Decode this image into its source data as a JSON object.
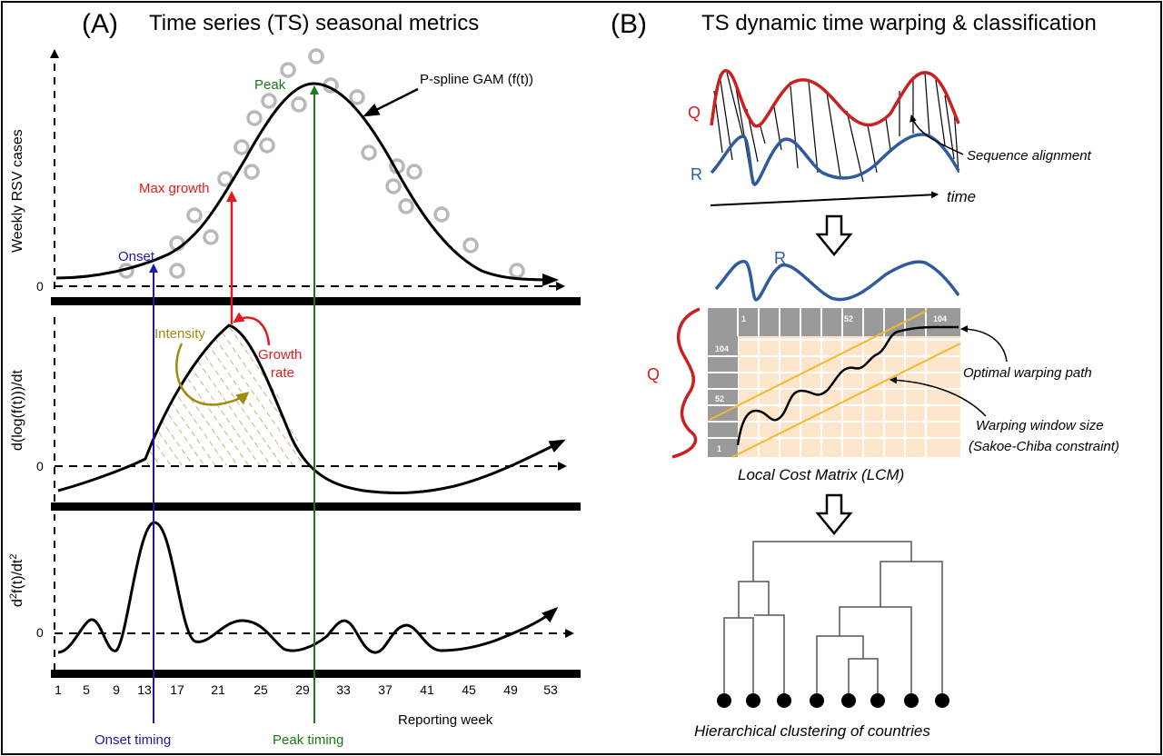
{
  "panel_a": {
    "letter": "(A)",
    "title": "Time series (TS) seasonal metrics",
    "ylabel_top": "Weekly RSV cases",
    "ylabel_mid": "d(log(f(t)))/dt",
    "ylabel_bot_base": "d",
    "ylabel_bot_sup1": "2",
    "ylabel_bot_mid": "f(t)/dt",
    "ylabel_bot_sup2": "2",
    "zero": "0",
    "xlabel": "Reporting week",
    "xticks": [
      "1",
      "5",
      "9",
      "13",
      "17",
      "21",
      "25",
      "29",
      "33",
      "37",
      "41",
      "45",
      "49",
      "53"
    ],
    "labels": {
      "gam": "P-spline GAM (f(t))",
      "peak": "Peak",
      "max_growth": "Max growth",
      "onset": "Onset",
      "intensity": "Intensity",
      "growth": "Growth",
      "rate": "rate",
      "onset_timing": "Onset timing",
      "peak_timing": "Peak timing"
    },
    "colors": {
      "curve": "#000000",
      "points": "#b8b8b8",
      "onset": "#1a1aa6",
      "growth": "#e41a1c",
      "peak": "#1a7a1a",
      "intensity": "#a08a10"
    }
  },
  "panel_b": {
    "letter": "(B)",
    "title": "TS dynamic time warping & classification",
    "q_label": "Q",
    "r_label": "R",
    "time_label": "time",
    "seq_align": "Sequence alignment",
    "lcm_top_labels": [
      "1",
      "52",
      "104"
    ],
    "lcm_left_labels": [
      "104",
      "52",
      "1"
    ],
    "optimal_path": "Optimal warping path",
    "window_line1": "Warping window size",
    "window_line2": "(Sakoe-Chiba constraint)",
    "lcm_caption": "Local Cost Matrix (LCM)",
    "cluster_caption": "Hierarchical clustering of countries",
    "colors": {
      "q": "#cc1f1f",
      "r": "#2f5b9e",
      "grid_fill": "#fde6cc",
      "window": "#f5b82e",
      "header": "#9a9a9a"
    }
  }
}
